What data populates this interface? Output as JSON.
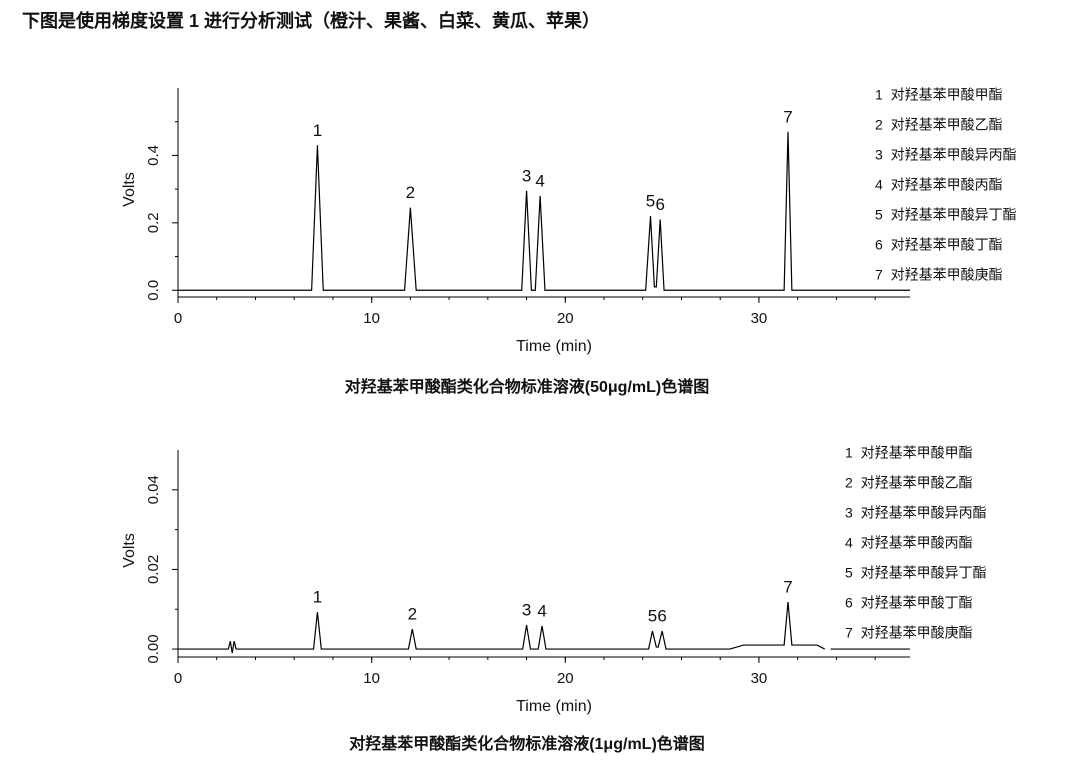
{
  "title": "下图是使用梯度设置 1 进行分析测试（橙汁、果酱、白菜、黄瓜、苹果）",
  "chart_data": [
    {
      "type": "line",
      "title": "对羟基苯甲酸酯类化合物标准溶液(50μg/mL)色谱图",
      "x_label": "Time (min)",
      "y_label": "Volts",
      "color": "#000000",
      "xlim": [
        0,
        37.8
      ],
      "ylim": [
        -0.02,
        0.6
      ],
      "xticks": [
        0,
        10,
        20,
        30
      ],
      "yticks": [
        {
          "value": 0,
          "label": "0.0"
        },
        {
          "value": 0.2,
          "label": "0.2"
        },
        {
          "value": 0.4,
          "label": "0.4"
        }
      ],
      "x": [
        0,
        6.9,
        7.2,
        7.5,
        11.7,
        12,
        12.3,
        17.75,
        18,
        18.25,
        18.45,
        18.7,
        18.95,
        24.15,
        24.4,
        24.6,
        24.7,
        24.9,
        25.1,
        31.3,
        31.5,
        31.7,
        37.8
      ],
      "values": [
        0,
        0,
        0.43,
        0,
        0,
        0.245,
        0,
        0,
        0.295,
        0,
        0,
        0.28,
        0,
        0,
        0.22,
        0.01,
        0.01,
        0.21,
        0,
        0,
        0.47,
        0,
        0
      ],
      "annotations": [
        {
          "text": "1",
          "x": 7.2,
          "y": 0.43
        },
        {
          "text": "2",
          "x": 12,
          "y": 0.245
        },
        {
          "text": "3",
          "x": 18,
          "y": 0.295
        },
        {
          "text": "4",
          "x": 18.7,
          "y": 0.28
        },
        {
          "text": "5",
          "x": 24.4,
          "y": 0.22
        },
        {
          "text": "6",
          "x": 24.9,
          "y": 0.21
        },
        {
          "text": "7",
          "x": 31.5,
          "y": 0.47
        }
      ],
      "legend": [
        "1  对羟基苯甲酸甲酯",
        "2  对羟基苯甲酸乙酯",
        "3  对羟基苯甲酸异丙酯",
        "4  对羟基苯甲酸丙酯",
        "5  对羟基苯甲酸异丁酯",
        "6  对羟基苯甲酸丁酯",
        "7  对羟基苯甲酸庚酯"
      ]
    },
    {
      "type": "line",
      "title": "对羟基苯甲酸酯类化合物标准溶液(1μg/mL)色谱图",
      "x_label": "Time (min)",
      "y_label": "Volts",
      "color": "#000000",
      "xlim": [
        0,
        37.8
      ],
      "ylim": [
        -0.002,
        0.05
      ],
      "xticks": [
        0,
        10,
        20,
        30
      ],
      "yticks": [
        {
          "value": 0,
          "label": "0.00"
        },
        {
          "value": 0.02,
          "label": "0.02"
        },
        {
          "value": 0.04,
          "label": "0.04"
        }
      ],
      "x": [
        0,
        2.6,
        2.7,
        2.8,
        2.9,
        3.0,
        3.2,
        7.0,
        7.2,
        7.4,
        11.9,
        12.1,
        12.3,
        17.8,
        18.0,
        18.2,
        18.6,
        18.8,
        19.0,
        24.3,
        24.5,
        24.7,
        24.8,
        25.0,
        25.2,
        28.5,
        29.2,
        31.3,
        31.5,
        31.7,
        33.0,
        33.4,
        33.6,
        33.7,
        37.8
      ],
      "values": [
        0,
        0,
        0.002,
        -0.001,
        0.002,
        0,
        0,
        0,
        0.0093,
        0,
        0,
        0.005,
        0,
        0,
        0.006,
        0,
        0,
        0.0058,
        0,
        0,
        0.0045,
        0.0005,
        0.0005,
        0.0045,
        0,
        0,
        0.001,
        0.001,
        0.0118,
        0.001,
        0.001,
        0,
        null,
        0,
        0
      ],
      "annotations": [
        {
          "text": "1",
          "x": 7.2,
          "y": 0.0093
        },
        {
          "text": "2",
          "x": 12.1,
          "y": 0.005
        },
        {
          "text": "3",
          "x": 18.0,
          "y": 0.006
        },
        {
          "text": "4",
          "x": 18.8,
          "y": 0.0058
        },
        {
          "text": "5",
          "x": 24.5,
          "y": 0.0045
        },
        {
          "text": "6",
          "x": 25.0,
          "y": 0.0045
        },
        {
          "text": "7",
          "x": 31.5,
          "y": 0.0118
        }
      ],
      "legend": [
        "1  对羟基苯甲酸甲酯",
        "2  对羟基苯甲酸乙酯",
        "3  对羟基苯甲酸异丙酯",
        "4  对羟基苯甲酸丙酯",
        "5  对羟基苯甲酸异丁酯",
        "6  对羟基苯甲酸丁酯",
        "7  对羟基苯甲酸庚酯"
      ]
    }
  ]
}
